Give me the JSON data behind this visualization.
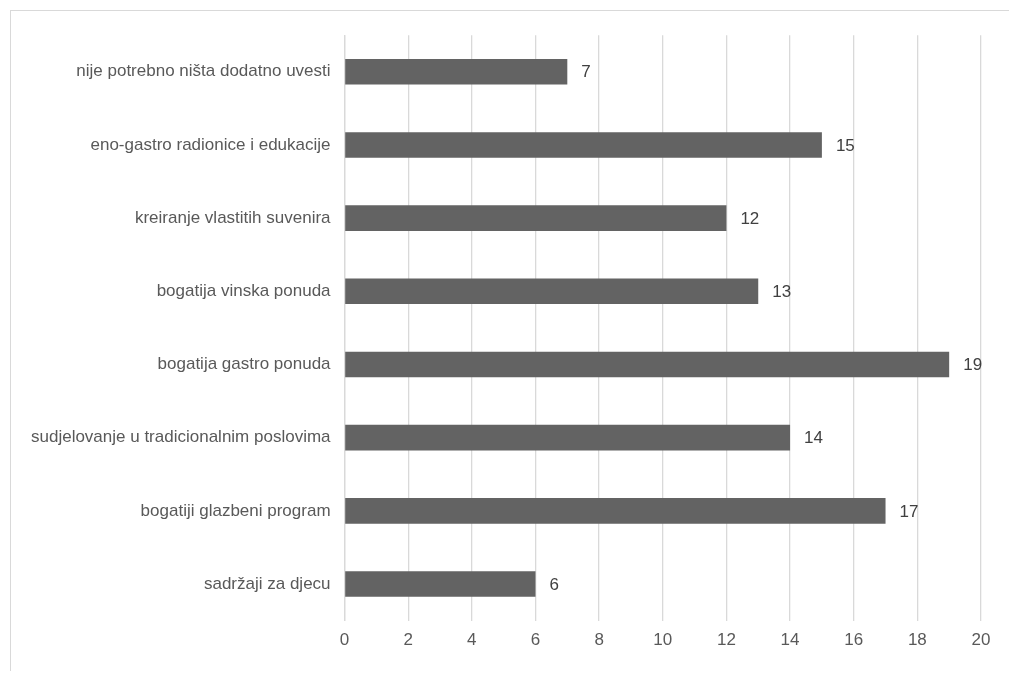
{
  "chart_data": {
    "type": "bar",
    "orientation": "horizontal",
    "categories": [
      "nije potrebno ništa dodatno uvesti",
      "eno-gastro radionice i edukacije",
      "kreiranje vlastitih suvenira",
      "bogatija vinska ponuda",
      "bogatija gastro ponuda",
      "sudjelovanje u tradicionalnim poslovima",
      "bogatiji glazbeni program",
      "sadržaji za djecu"
    ],
    "values": [
      7,
      15,
      12,
      13,
      19,
      14,
      17,
      6
    ],
    "color": "#636363",
    "xlim": [
      0,
      20
    ],
    "xticks": [
      0,
      2,
      4,
      6,
      8,
      10,
      12,
      14,
      16,
      18,
      20
    ],
    "grid": "x",
    "data_labels": true,
    "legend": false
  }
}
